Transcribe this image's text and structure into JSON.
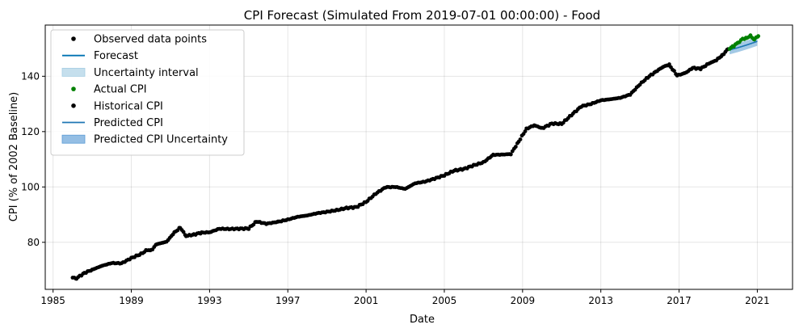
{
  "chart_data": {
    "type": "line",
    "title": "CPI Forecast (Simulated From 2019-07-01 00:00:00) - Food",
    "xlabel": "Date",
    "ylabel": "CPI (% of 2002 Baseline)",
    "xlim": [
      1984.6,
      2022.8
    ],
    "ylim": [
      63,
      158.5
    ],
    "xticks": [
      1985,
      1989,
      1993,
      1997,
      2001,
      2005,
      2009,
      2013,
      2017,
      2021
    ],
    "yticks": [
      80,
      100,
      120,
      140
    ],
    "grid": true,
    "legend_position": "top-left",
    "legend": [
      {
        "label": "Observed data points",
        "kind": "dot",
        "color": "#000000"
      },
      {
        "label": "Forecast",
        "kind": "line",
        "color": "#0072B2"
      },
      {
        "label": "Uncertainty interval",
        "kind": "patch",
        "color": "#a6cee3"
      },
      {
        "label": "Actual CPI",
        "kind": "dot",
        "color": "#008000"
      },
      {
        "label": "Historical CPI",
        "kind": "dot",
        "color": "#000000"
      },
      {
        "label": "Predicted CPI",
        "kind": "line",
        "color": "#1f77b4"
      },
      {
        "label": "Predicted CPI Uncertainty",
        "kind": "patch",
        "color": "#5b9bd5"
      }
    ],
    "historical_anchors": [
      [
        1986.0,
        67.2
      ],
      [
        1986.2,
        67.0
      ],
      [
        1986.6,
        68.9
      ],
      [
        1987.0,
        70.1
      ],
      [
        1987.5,
        71.5
      ],
      [
        1988.0,
        72.5
      ],
      [
        1988.5,
        72.4
      ],
      [
        1989.0,
        74.3
      ],
      [
        1989.5,
        75.8
      ],
      [
        1989.8,
        77.2
      ],
      [
        1990.0,
        77.0
      ],
      [
        1990.3,
        79.3
      ],
      [
        1990.8,
        80.2
      ],
      [
        1991.2,
        83.5
      ],
      [
        1991.5,
        85.3
      ],
      [
        1991.8,
        82.3
      ],
      [
        1992.2,
        82.8
      ],
      [
        1992.6,
        83.5
      ],
      [
        1993.0,
        83.6
      ],
      [
        1993.5,
        84.9
      ],
      [
        1994.0,
        84.8
      ],
      [
        1994.5,
        84.9
      ],
      [
        1995.0,
        85.0
      ],
      [
        1995.4,
        87.5
      ],
      [
        1995.9,
        86.7
      ],
      [
        1996.5,
        87.4
      ],
      [
        1997.0,
        88.2
      ],
      [
        1997.5,
        89.2
      ],
      [
        1998.0,
        89.7
      ],
      [
        1998.5,
        90.5
      ],
      [
        1999.0,
        91.0
      ],
      [
        1999.5,
        91.6
      ],
      [
        2000.0,
        92.4
      ],
      [
        2000.5,
        92.7
      ],
      [
        2001.0,
        94.6
      ],
      [
        2001.5,
        97.6
      ],
      [
        2002.0,
        99.9
      ],
      [
        2002.5,
        100.0
      ],
      [
        2003.0,
        99.3
      ],
      [
        2003.5,
        101.3
      ],
      [
        2004.0,
        101.9
      ],
      [
        2004.5,
        103.0
      ],
      [
        2005.0,
        104.2
      ],
      [
        2005.5,
        105.9
      ],
      [
        2006.0,
        106.5
      ],
      [
        2006.5,
        107.8
      ],
      [
        2007.0,
        108.9
      ],
      [
        2007.5,
        111.6
      ],
      [
        2008.0,
        111.7
      ],
      [
        2008.4,
        111.9
      ],
      [
        2008.8,
        116.4
      ],
      [
        2009.2,
        121.0
      ],
      [
        2009.6,
        122.3
      ],
      [
        2010.0,
        121.2
      ],
      [
        2010.5,
        122.9
      ],
      [
        2011.0,
        122.8
      ],
      [
        2011.5,
        126.0
      ],
      [
        2012.0,
        129.1
      ],
      [
        2012.5,
        130.0
      ],
      [
        2013.0,
        131.3
      ],
      [
        2013.5,
        131.7
      ],
      [
        2014.0,
        132.2
      ],
      [
        2014.5,
        133.4
      ],
      [
        2015.0,
        137.1
      ],
      [
        2015.4,
        139.6
      ],
      [
        2015.8,
        141.6
      ],
      [
        2016.2,
        143.5
      ],
      [
        2016.5,
        144.1
      ],
      [
        2016.9,
        140.3
      ],
      [
        2017.3,
        141.1
      ],
      [
        2017.7,
        143.0
      ],
      [
        2018.1,
        142.7
      ],
      [
        2018.5,
        144.5
      ],
      [
        2018.9,
        145.8
      ],
      [
        2019.2,
        147.5
      ],
      [
        2019.5,
        149.8
      ]
    ],
    "actual_anchors": [
      [
        2019.58,
        150.0
      ],
      [
        2019.8,
        151.0
      ],
      [
        2020.0,
        152.0
      ],
      [
        2020.25,
        153.5
      ],
      [
        2020.45,
        153.8
      ],
      [
        2020.65,
        154.5
      ],
      [
        2020.85,
        153.4
      ],
      [
        2021.05,
        154.5
      ]
    ],
    "forecast_anchors": [
      [
        2019.58,
        149.5
      ],
      [
        2020.0,
        150.3
      ],
      [
        2020.5,
        151.4
      ],
      [
        2021.0,
        152.6
      ]
    ],
    "forecast_band_half_width": 1.6
  }
}
